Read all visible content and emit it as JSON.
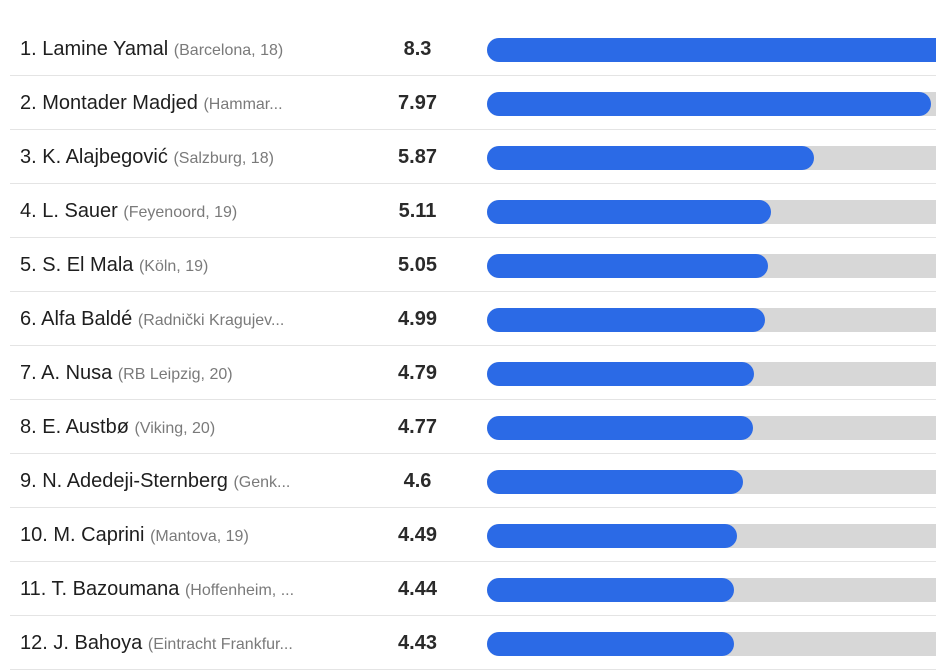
{
  "ranking": {
    "max_value": 8.3,
    "colors": {
      "bar_fill": "#2b6ae6",
      "bar_track": "#d7d7d7",
      "row_divider": "#e4e4e4"
    },
    "rows": [
      {
        "name": "1. Lamine Yamal",
        "club": "(Barcelona, 18)",
        "value": 8.3,
        "value_label": "8.3"
      },
      {
        "name": "2. Montader Madjed",
        "club": "(Hammar...",
        "value": 7.97,
        "value_label": "7.97"
      },
      {
        "name": "3. K. Alajbegović",
        "club": "(Salzburg, 18)",
        "value": 5.87,
        "value_label": "5.87"
      },
      {
        "name": "4. L. Sauer",
        "club": "(Feyenoord, 19)",
        "value": 5.11,
        "value_label": "5.11"
      },
      {
        "name": "5. S. El Mala",
        "club": "(Köln, 19)",
        "value": 5.05,
        "value_label": "5.05"
      },
      {
        "name": "6. Alfa Baldé",
        "club": "(Radnički Kragujev...",
        "value": 4.99,
        "value_label": "4.99"
      },
      {
        "name": "7. A. Nusa",
        "club": "(RB Leipzig, 20)",
        "value": 4.79,
        "value_label": "4.79"
      },
      {
        "name": "8. E. Austbø",
        "club": "(Viking, 20)",
        "value": 4.77,
        "value_label": "4.77"
      },
      {
        "name": "9. N. Adedeji-Sternberg",
        "club": "(Genk...",
        "value": 4.6,
        "value_label": "4.6"
      },
      {
        "name": "10. M. Caprini",
        "club": "(Mantova, 19)",
        "value": 4.49,
        "value_label": "4.49"
      },
      {
        "name": "11. T. Bazoumana",
        "club": "(Hoffenheim, ...",
        "value": 4.44,
        "value_label": "4.44"
      },
      {
        "name": "12. J. Bahoya",
        "club": "(Eintracht Frankfur...",
        "value": 4.43,
        "value_label": "4.43"
      }
    ]
  }
}
